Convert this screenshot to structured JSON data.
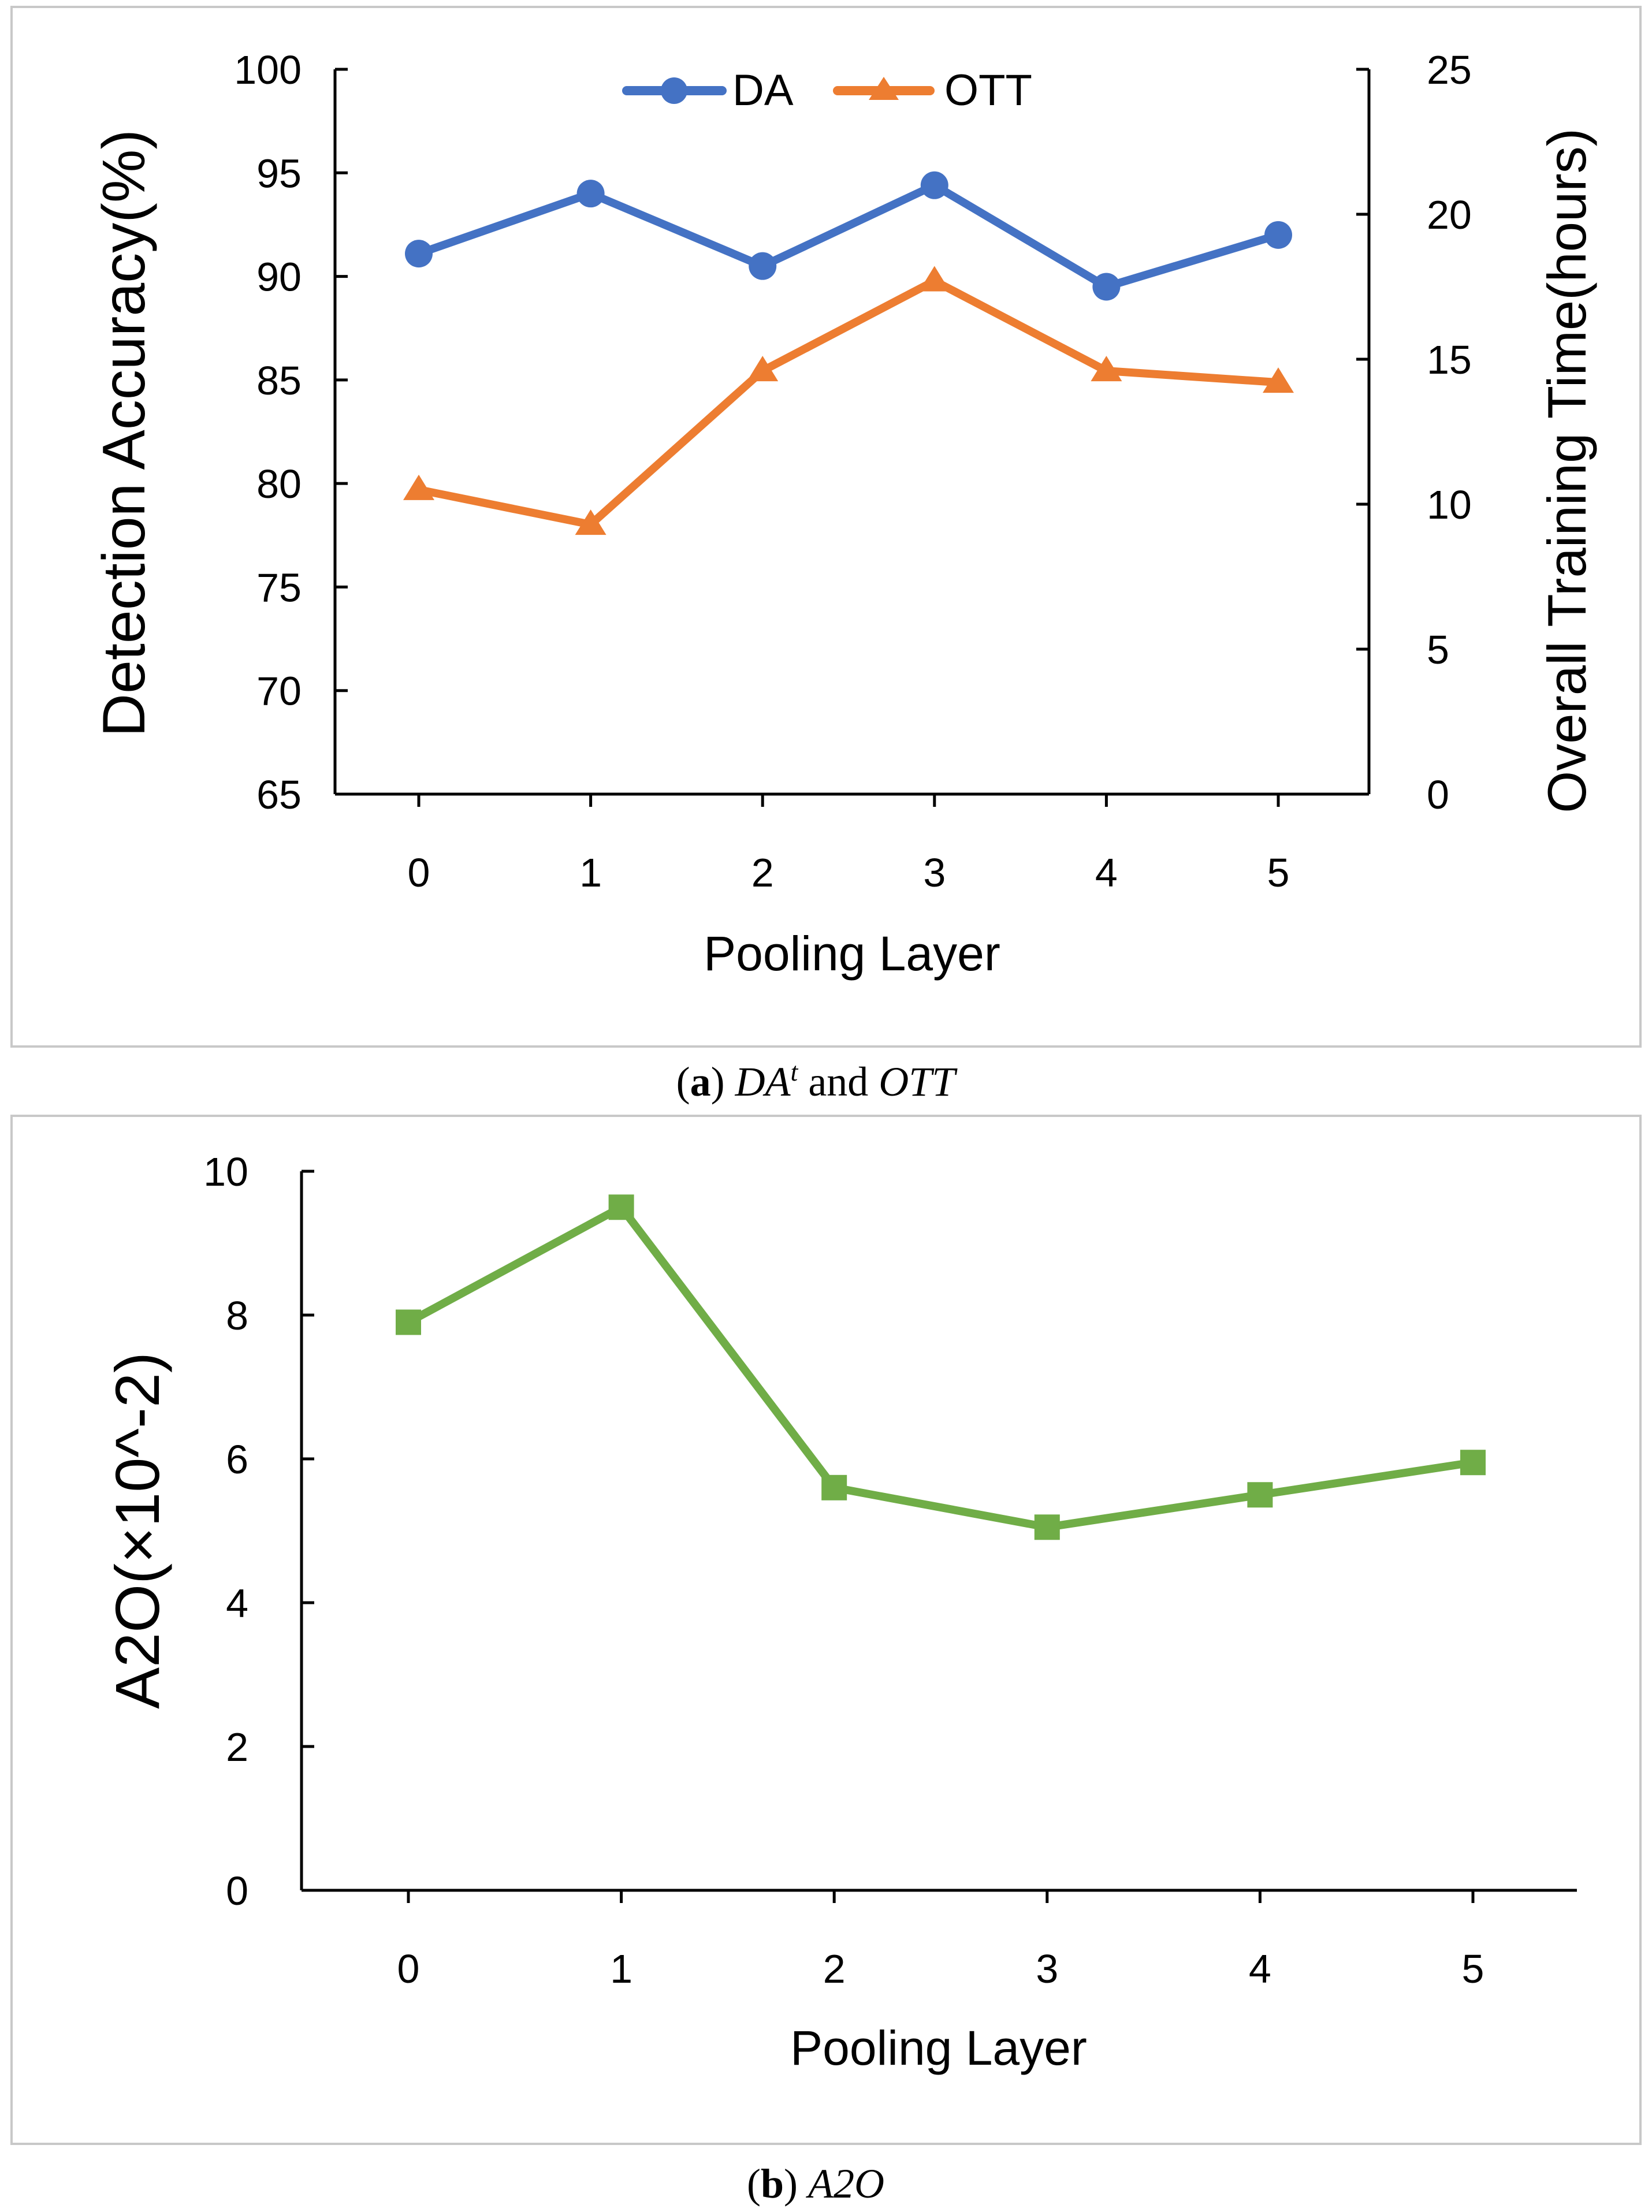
{
  "colors": {
    "da": "#4472c4",
    "ott": "#ed7d31",
    "a2o": "#70ad47"
  },
  "chart_data": [
    {
      "type": "line",
      "panel": "a",
      "x": [
        0,
        1,
        2,
        3,
        4,
        5
      ],
      "categories": [
        "0",
        "1",
        "2",
        "3",
        "4",
        "5"
      ],
      "xlabel": "Pooling Layer",
      "ylabel_left": "Detection Accuracy(%)",
      "ylabel_right": "Overall Training Time(hours)",
      "ylim_left": [
        65,
        100
      ],
      "yticks_left": [
        65,
        70,
        75,
        80,
        85,
        90,
        95,
        100
      ],
      "ylim_right": [
        0,
        25
      ],
      "yticks_right": [
        0,
        5,
        10,
        15,
        20,
        25
      ],
      "legend_position": "top-center",
      "series": [
        {
          "name": "DA",
          "axis": "left",
          "marker": "circle",
          "values": [
            91.1,
            94.0,
            90.5,
            94.4,
            89.5,
            92.0
          ]
        },
        {
          "name": "OTT",
          "axis": "right",
          "marker": "triangle",
          "values": [
            10.5,
            9.3,
            14.6,
            17.7,
            14.6,
            14.2
          ]
        }
      ]
    },
    {
      "type": "line",
      "panel": "b",
      "x": [
        0,
        1,
        2,
        3,
        4,
        5
      ],
      "categories": [
        "0",
        "1",
        "2",
        "3",
        "4",
        "5"
      ],
      "xlabel": "Pooling Layer",
      "ylabel": "A2O(×10^-2)",
      "ylim": [
        0,
        10
      ],
      "yticks": [
        0,
        2,
        4,
        6,
        8,
        10
      ],
      "series": [
        {
          "name": "A2O",
          "marker": "square",
          "values": [
            7.9,
            9.5,
            5.6,
            5.05,
            5.5,
            5.95
          ]
        }
      ]
    }
  ],
  "captions": {
    "a": {
      "label": "a",
      "da": "DA",
      "da_sup": "t",
      "and": "and",
      "ott": "OTT"
    },
    "b": {
      "label": "b",
      "name": "A2O"
    }
  }
}
